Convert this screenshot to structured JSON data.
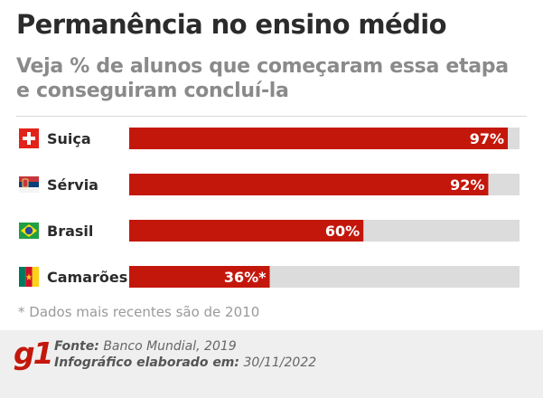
{
  "header": {
    "title": "Permanência no ensino médio",
    "subtitle": "Veja % de alunos que começaram essa etapa e conseguiram concluí-la"
  },
  "chart_data": {
    "type": "bar",
    "orientation": "horizontal",
    "categories": [
      "Suiça",
      "Sérvia",
      "Brasil",
      "Camarões"
    ],
    "values": [
      97,
      92,
      60,
      36
    ],
    "value_labels": [
      "97%",
      "92%",
      "60%",
      "36%*"
    ],
    "flags": [
      "switzerland-flag-icon",
      "serbia-flag-icon",
      "brazil-flag-icon",
      "cameroon-flag-icon"
    ],
    "xlim": [
      0,
      100
    ],
    "unit": "%",
    "bar_color": "#c4170c",
    "track_color": "#dcdcdc",
    "grid": false,
    "legend": "none"
  },
  "footnote": "* Dados mais recentes são de 2010",
  "footer": {
    "logo": "g1",
    "source_label": "Fonte:",
    "source_value": "Banco Mundial, 2019",
    "made_label": "Infográfico elaborado em:",
    "made_value": "30/11/2022"
  },
  "colors": {
    "accent": "#c4170c",
    "title": "#2b2b2b",
    "subtitle": "#8a8a8a",
    "footer_bg": "#efefef"
  }
}
